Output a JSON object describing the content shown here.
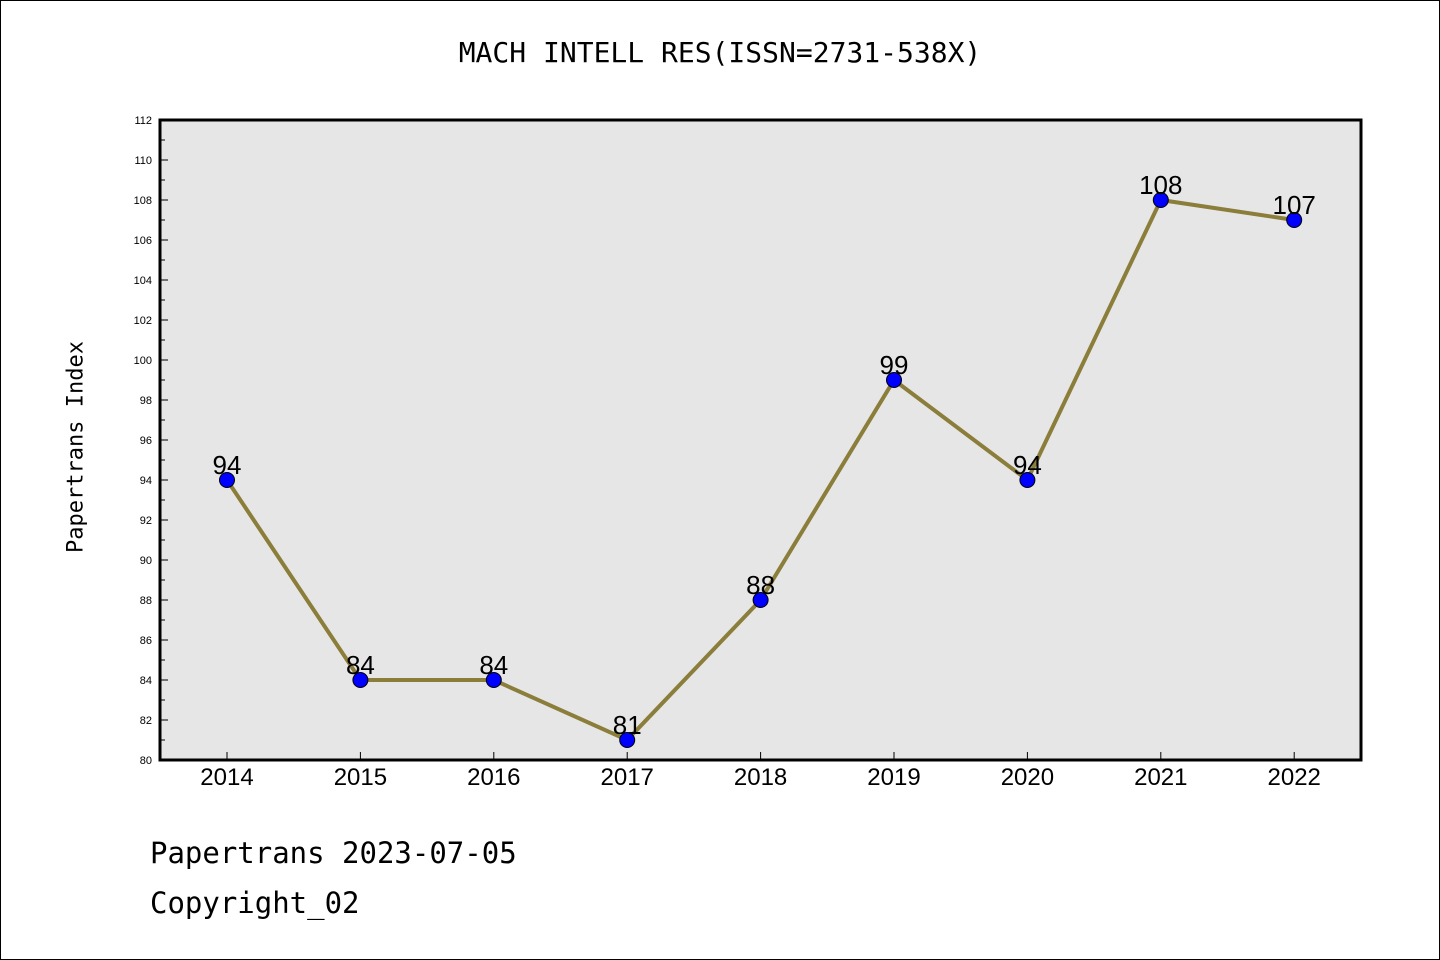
{
  "title": "MACH INTELL RES(ISSN=2731-538X)",
  "footer": {
    "line1": "Papertrans 2023-07-05",
    "line2": "Copyright_02"
  },
  "colors": {
    "plot_bg": "#e6e6e6",
    "line": "#8b7d3a",
    "marker": "#0000ff"
  },
  "chart_data": {
    "type": "line",
    "title": "MACH INTELL RES(ISSN=2731-538X)",
    "xlabel": "",
    "ylabel": "Papertrans Index",
    "categories": [
      "2014",
      "2015",
      "2016",
      "2017",
      "2018",
      "2019",
      "2020",
      "2021",
      "2022"
    ],
    "values": [
      94,
      84,
      84,
      81,
      88,
      99,
      94,
      108,
      107
    ],
    "ylim": [
      80,
      112
    ],
    "yticks": [
      "80",
      "82",
      "84",
      "86",
      "88",
      "90",
      "92",
      "94",
      "96",
      "98",
      "100",
      "102",
      "104",
      "106",
      "108",
      "110",
      "112"
    ],
    "grid": false,
    "data_labels": true
  }
}
